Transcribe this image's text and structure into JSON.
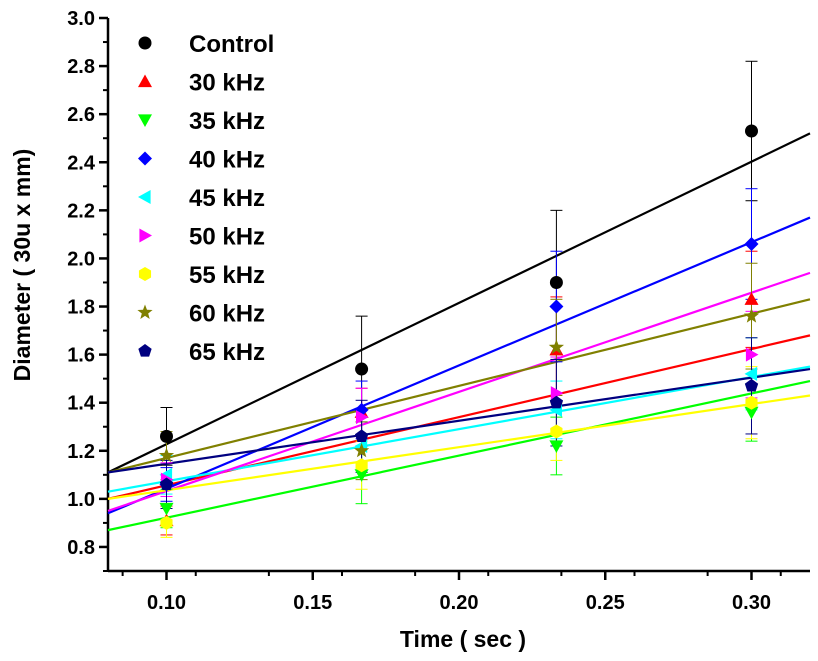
{
  "chart_data": {
    "type": "scatter",
    "xlabel": "Time ( sec )",
    "ylabel": "Diameter ( 30u x mm)",
    "xlim": [
      0.08,
      0.32
    ],
    "ylim": [
      0.7,
      3.0
    ],
    "xticks": [
      0.1,
      0.15,
      0.2,
      0.25,
      0.3
    ],
    "xtick_labels": [
      "0.10",
      "0.15",
      "0.20",
      "0.25",
      "0.30"
    ],
    "yticks": [
      0.8,
      1.0,
      1.2,
      1.4,
      1.6,
      1.8,
      2.0,
      2.2,
      2.4,
      2.6,
      2.8,
      3.0
    ],
    "ytick_labels": [
      "0.8",
      "1.0",
      "1.2",
      "1.4",
      "1.6",
      "1.8",
      "2.0",
      "2.2",
      "2.4",
      "2.6",
      "2.8",
      "3.0"
    ],
    "grid": false,
    "legend_position": "top-left",
    "x": [
      0.1,
      0.1667,
      0.2333,
      0.3
    ],
    "series": [
      {
        "name": "Control",
        "color": "#000000",
        "marker": "circle",
        "values": [
          1.26,
          1.54,
          1.9,
          2.53
        ],
        "errors": [
          0.12,
          0.22,
          0.3,
          0.29
        ],
        "fit": [
          [
            0.08,
            1.11
          ],
          [
            0.32,
            2.52
          ]
        ]
      },
      {
        "name": "30 kHz",
        "color": "#ff0000",
        "marker": "triangle-up",
        "values": [
          0.91,
          1.36,
          1.62,
          1.83
        ],
        "errors": [
          0.06,
          0.1,
          0.22,
          0.2
        ],
        "fit": [
          [
            0.08,
            1.0
          ],
          [
            0.32,
            1.68
          ]
        ]
      },
      {
        "name": "35 kHz",
        "color": "#00ff00",
        "marker": "triangle-down",
        "values": [
          0.96,
          1.1,
          1.22,
          1.36
        ],
        "errors": [
          0.08,
          0.12,
          0.12,
          0.12
        ],
        "fit": [
          [
            0.08,
            0.87
          ],
          [
            0.32,
            1.49
          ]
        ]
      },
      {
        "name": "40 kHz",
        "color": "#0000ff",
        "marker": "diamond",
        "values": [
          1.06,
          1.37,
          1.8,
          2.06
        ],
        "errors": [
          0.07,
          0.12,
          0.23,
          0.23
        ],
        "fit": [
          [
            0.08,
            0.94
          ],
          [
            0.32,
            2.17
          ]
        ]
      },
      {
        "name": "45 kHz",
        "color": "#00ffff",
        "marker": "triangle-left",
        "values": [
          1.1,
          1.22,
          1.37,
          1.52
        ],
        "errors": [
          0.08,
          0.1,
          0.12,
          0.15
        ],
        "fit": [
          [
            0.08,
            1.03
          ],
          [
            0.32,
            1.55
          ]
        ]
      },
      {
        "name": "50 kHz",
        "color": "#ff00ff",
        "marker": "triangle-right",
        "values": [
          1.08,
          1.34,
          1.44,
          1.6
        ],
        "errors": [
          0.07,
          0.12,
          0.15,
          0.18
        ],
        "fit": [
          [
            0.08,
            0.95
          ],
          [
            0.32,
            1.94
          ]
        ]
      },
      {
        "name": "55 kHz",
        "color": "#ffff00",
        "marker": "hexagon",
        "values": [
          0.9,
          1.14,
          1.28,
          1.4
        ],
        "errors": [
          0.06,
          0.1,
          0.12,
          0.15
        ],
        "fit": [
          [
            0.08,
            1.0
          ],
          [
            0.32,
            1.43
          ]
        ]
      },
      {
        "name": "60 kHz",
        "color": "#808000",
        "marker": "star",
        "values": [
          1.18,
          1.2,
          1.63,
          1.76
        ],
        "errors": [
          0.1,
          0.12,
          0.2,
          0.22
        ],
        "fit": [
          [
            0.08,
            1.11
          ],
          [
            0.32,
            1.83
          ]
        ]
      },
      {
        "name": "65 kHz",
        "color": "#000080",
        "marker": "pentagon",
        "values": [
          1.06,
          1.26,
          1.4,
          1.47
        ],
        "errors": [
          0.1,
          0.15,
          0.18,
          0.2
        ],
        "fit": [
          [
            0.08,
            1.11
          ],
          [
            0.32,
            1.54
          ]
        ]
      }
    ]
  }
}
